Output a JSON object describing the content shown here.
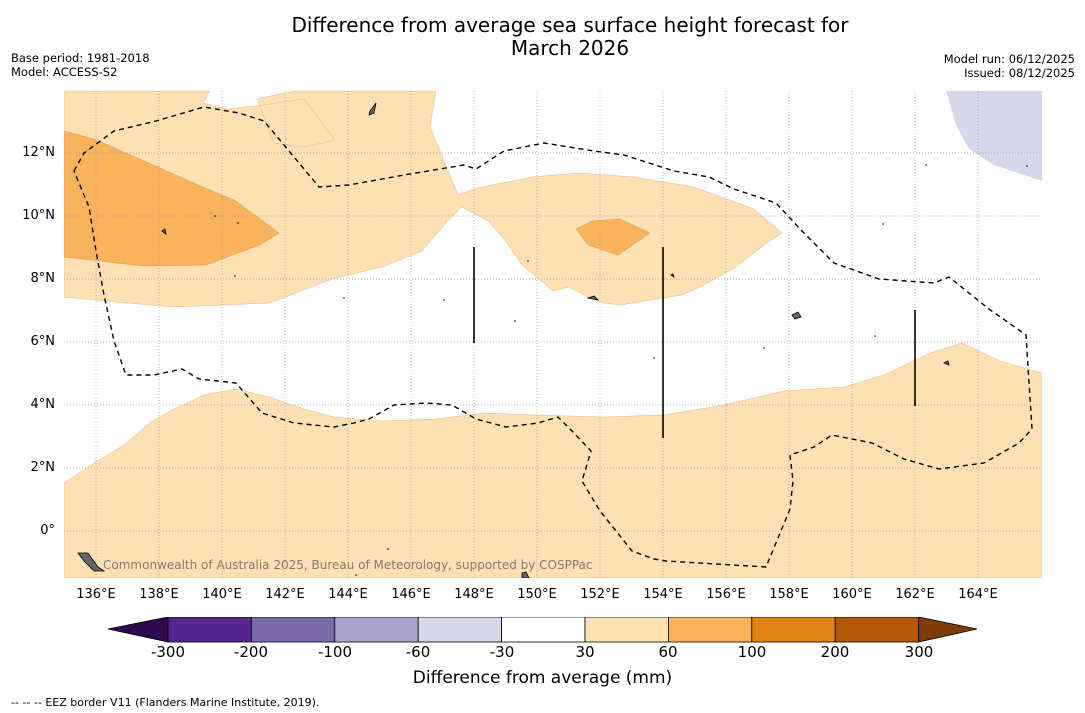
{
  "title": {
    "line1": "Difference from average sea surface height forecast for",
    "line2": "March 2026"
  },
  "meta": {
    "base_period": "Base period: 1981-2018",
    "model": "Model: ACCESS-S2",
    "model_run": "Model run: 06/12/2025",
    "issued": "Issued: 08/12/2025"
  },
  "map": {
    "region": "Western tropical North Pacific",
    "lat_labels": [
      "12°N",
      "10°N",
      "8°N",
      "6°N",
      "4°N",
      "2°N",
      "0°"
    ],
    "lon_labels": [
      "136°E",
      "138°E",
      "140°E",
      "142°E",
      "144°E",
      "146°E",
      "148°E",
      "150°E",
      "152°E",
      "154°E",
      "156°E",
      "158°E",
      "160°E",
      "162°E",
      "164°E"
    ],
    "credit": "Commonwealth of Australia 2025, Bureau of Meteorology, supported by COSPPac",
    "legend_eez": "EEZ border V11 (Flanders Marine Institute, 2019).",
    "legend_eez_symbol": "--  --  --"
  },
  "colorbar": {
    "label": "Difference from average (mm)",
    "ticks": [
      "-300",
      "-200",
      "-100",
      "-60",
      "-30",
      "30",
      "60",
      "100",
      "200",
      "300"
    ],
    "colors": {
      "below": "#2d0a4e",
      "bins": [
        "#54278f",
        "#7b6baa",
        "#aca6cf",
        "#d6d7ea",
        "#ffffff",
        "#fde0b3",
        "#f9b35c",
        "#e08314",
        "#b35806"
      ],
      "above": "#7f3b08"
    }
  }
}
